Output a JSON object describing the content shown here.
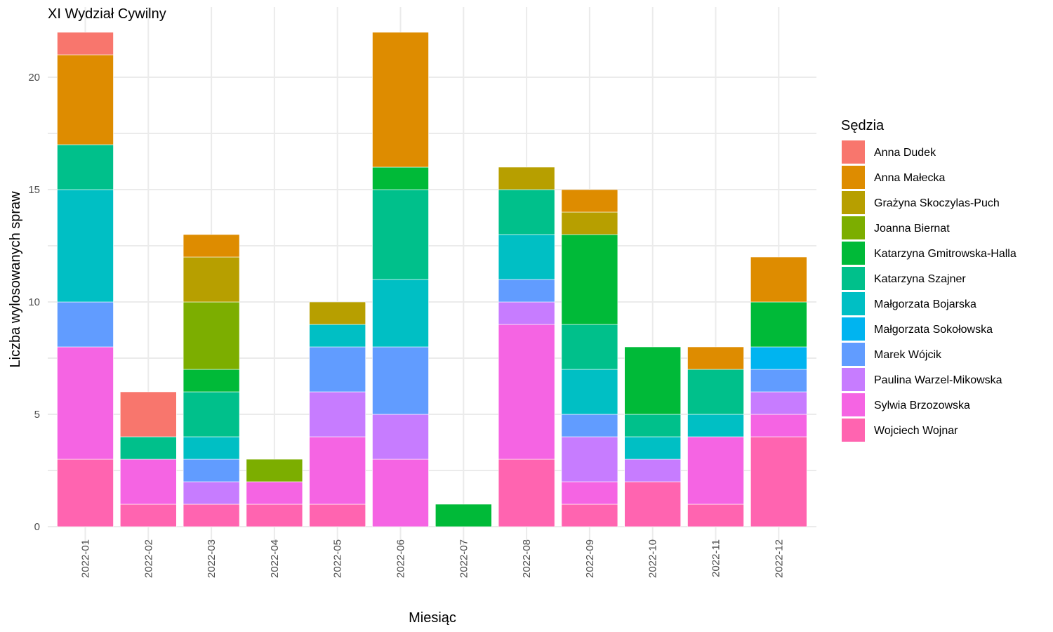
{
  "chart_data": {
    "type": "bar",
    "stacked": true,
    "title": "XI Wydział Cywilny",
    "xlabel": "Miesiąc",
    "ylabel": "Liczba wylosowanych spraw",
    "ylim": [
      0,
      22
    ],
    "yticks": [
      0,
      5,
      10,
      15,
      20
    ],
    "grid": true,
    "legend_position": "right",
    "legend_title": "Sędzia",
    "categories": [
      "2022-01",
      "2022-02",
      "2022-03",
      "2022-04",
      "2022-05",
      "2022-06",
      "2022-07",
      "2022-08",
      "2022-09",
      "2022-10",
      "2022-11",
      "2022-12"
    ],
    "series": [
      {
        "name": "Anna Dudek",
        "color": "#F8766D",
        "values": [
          1,
          2,
          0,
          0,
          0,
          0,
          0,
          0,
          0,
          0,
          0,
          0
        ]
      },
      {
        "name": "Anna Małecka",
        "color": "#DE8C00",
        "values": [
          4,
          0,
          1,
          0,
          0,
          6,
          0,
          0,
          1,
          0,
          1,
          2
        ]
      },
      {
        "name": "Grażyna Skoczylas-Puch",
        "color": "#B79F00",
        "values": [
          0,
          0,
          2,
          0,
          1,
          0,
          0,
          1,
          1,
          0,
          0,
          0
        ]
      },
      {
        "name": "Joanna Biernat",
        "color": "#7CAE00",
        "values": [
          0,
          0,
          3,
          1,
          0,
          0,
          0,
          0,
          0,
          0,
          0,
          0
        ]
      },
      {
        "name": "Katarzyna Gmitrowska-Halla",
        "color": "#00BA38",
        "values": [
          0,
          0,
          1,
          0,
          0,
          1,
          1,
          0,
          4,
          3,
          0,
          2
        ]
      },
      {
        "name": "Katarzyna Szajner",
        "color": "#00C08B",
        "values": [
          2,
          1,
          2,
          0,
          0,
          4,
          0,
          2,
          2,
          1,
          2,
          0
        ]
      },
      {
        "name": "Małgorzata Bojarska",
        "color": "#00BFC4",
        "values": [
          5,
          0,
          1,
          0,
          1,
          3,
          0,
          2,
          2,
          1,
          1,
          0
        ]
      },
      {
        "name": "Małgorzata Sokołowska",
        "color": "#00B4F0",
        "values": [
          0,
          0,
          0,
          0,
          0,
          0,
          0,
          0,
          0,
          0,
          0,
          1
        ]
      },
      {
        "name": "Marek Wójcik",
        "color": "#619CFF",
        "values": [
          2,
          0,
          1,
          0,
          2,
          3,
          0,
          1,
          1,
          0,
          0,
          1
        ]
      },
      {
        "name": "Paulina Warzel-Mikowska",
        "color": "#C77CFF",
        "values": [
          0,
          0,
          1,
          0,
          2,
          2,
          0,
          1,
          2,
          1,
          0,
          1
        ]
      },
      {
        "name": "Sylwia Brzozowska",
        "color": "#F564E3",
        "values": [
          5,
          2,
          0,
          1,
          3,
          3,
          0,
          6,
          1,
          0,
          3,
          1
        ]
      },
      {
        "name": "Wojciech Wojnar",
        "color": "#FF64B0",
        "values": [
          3,
          1,
          1,
          1,
          1,
          0,
          0,
          3,
          1,
          2,
          1,
          4
        ]
      }
    ]
  }
}
